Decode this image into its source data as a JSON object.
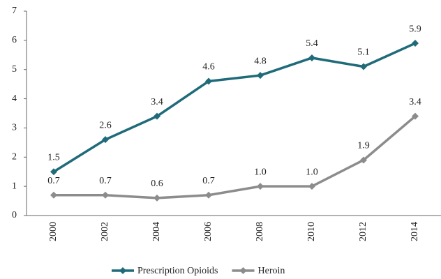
{
  "chart_data": {
    "type": "line",
    "categories": [
      "2000",
      "2002",
      "2004",
      "2006",
      "2008",
      "2010",
      "2012",
      "2014"
    ],
    "series": [
      {
        "name": "Prescription Opioids",
        "color": "#1f6b7a",
        "values": [
          1.5,
          2.6,
          3.4,
          4.6,
          4.8,
          5.4,
          5.1,
          5.9
        ],
        "value_labels": [
          "1.5",
          "2.6",
          "3.4",
          "4.6",
          "4.8",
          "5.4",
          "5.1",
          "5.9"
        ]
      },
      {
        "name": "Heroin",
        "color": "#8c8c8c",
        "values": [
          0.7,
          0.7,
          0.6,
          0.7,
          1.0,
          1.0,
          1.9,
          3.4
        ],
        "value_labels": [
          "0.7",
          "0.7",
          "0.6",
          "0.7",
          "1.0",
          "1.0",
          "1.9",
          "3.4"
        ]
      }
    ],
    "ylim": [
      0,
      7
    ],
    "yticks": [
      0,
      1,
      2,
      3,
      4,
      5,
      6,
      7
    ],
    "grid": false,
    "legend": "bottom"
  }
}
